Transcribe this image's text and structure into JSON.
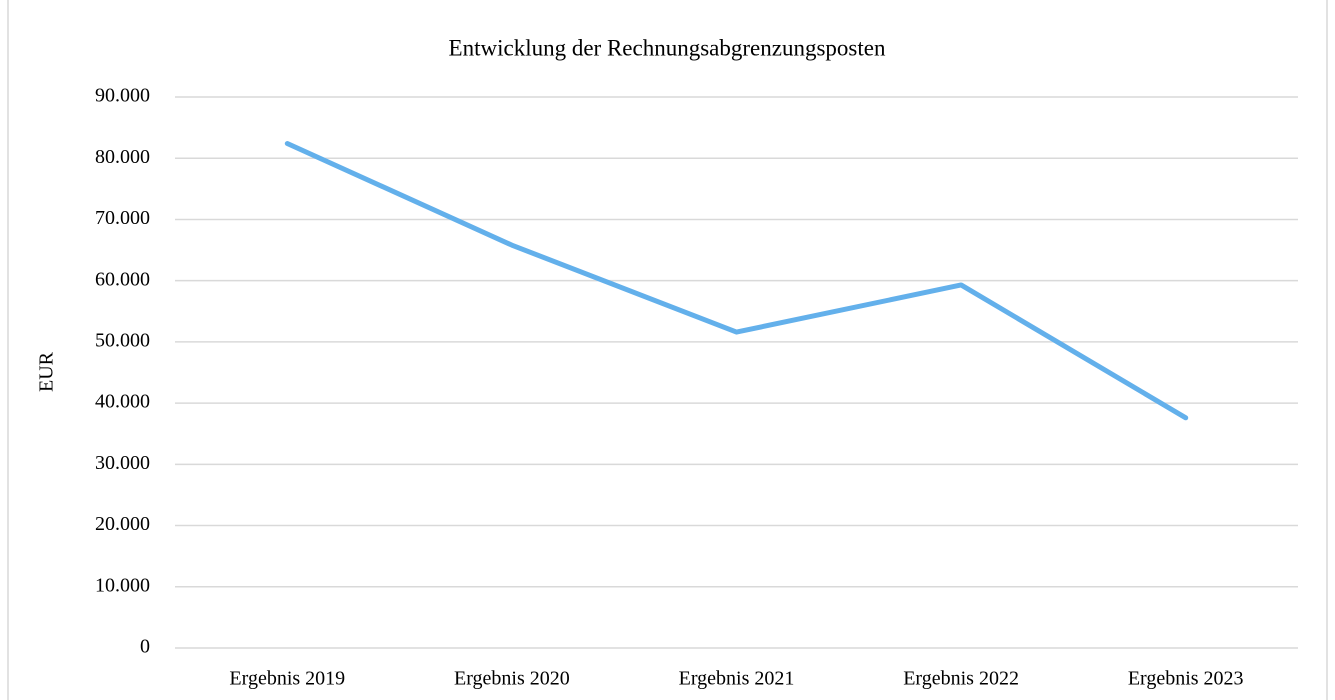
{
  "chart_data": {
    "type": "line",
    "title": "Entwicklung der Rechnungsabgrenzungsposten",
    "y_label": "EUR",
    "categories": [
      "Ergebnis 2019",
      "Ergebnis 2020",
      "Ergebnis 2021",
      "Ergebnis 2022",
      "Ergebnis 2023"
    ],
    "series": [
      {
        "name": "Rechnungsabgrenzungsposten",
        "color": "#63b0eb",
        "values": [
          82400,
          65800,
          51600,
          59300,
          37600
        ]
      }
    ],
    "ylim": [
      0,
      90000
    ],
    "yticks": [
      0,
      {
        "value": 10000,
        "label": "10.000"
      },
      {
        "value": 20000,
        "label": "20.000"
      },
      {
        "value": 30000,
        "label": "30.000"
      },
      {
        "value": 40000,
        "label": "40.000"
      },
      {
        "value": 50000,
        "label": "50.000"
      },
      {
        "value": 60000,
        "label": "60.000"
      },
      {
        "value": 70000,
        "label": "70.000"
      },
      {
        "value": 80000,
        "label": "80.000"
      },
      {
        "value": 90000,
        "label": "90.000"
      }
    ],
    "grid": true
  }
}
